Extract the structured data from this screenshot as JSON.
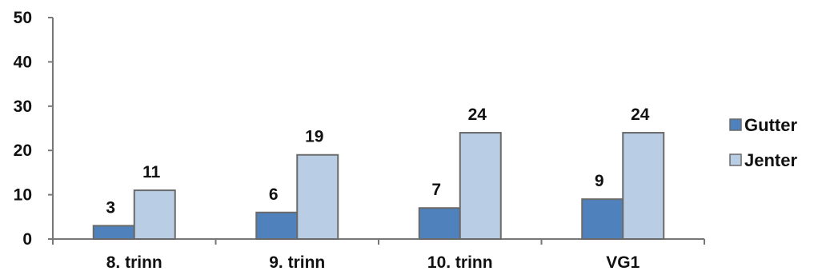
{
  "chart_data": {
    "type": "bar",
    "categories": [
      "8. trinn",
      "9. trinn",
      "10. trinn",
      "VG1"
    ],
    "series": [
      {
        "name": "Gutter",
        "values": [
          3,
          6,
          7,
          9
        ],
        "data_labels": [
          "3",
          "6",
          "7",
          "9"
        ],
        "color": "#4f81bd"
      },
      {
        "name": "Jenter",
        "values": [
          11,
          19,
          24,
          24
        ],
        "data_labels": [
          "11",
          "19",
          "24",
          "24"
        ],
        "color": "#b9cde5"
      }
    ],
    "yticks": [
      "0",
      "10",
      "20",
      "30",
      "40",
      "50"
    ],
    "ylim": [
      0,
      50
    ],
    "grid": false,
    "legend": "right",
    "title": "",
    "xlabel": "",
    "ylabel": ""
  }
}
